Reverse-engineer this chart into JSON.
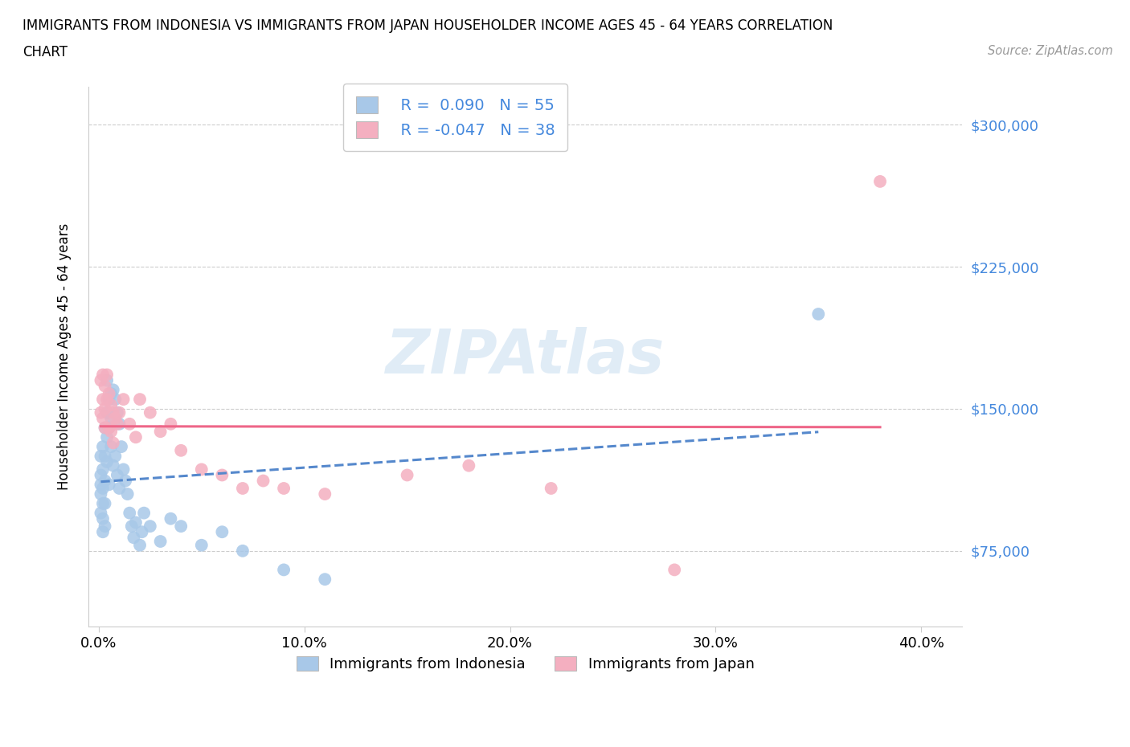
{
  "title_line1": "IMMIGRANTS FROM INDONESIA VS IMMIGRANTS FROM JAPAN HOUSEHOLDER INCOME AGES 45 - 64 YEARS CORRELATION",
  "title_line2": "CHART",
  "source": "Source: ZipAtlas.com",
  "ylabel": "Householder Income Ages 45 - 64 years",
  "xlabel_ticks": [
    "0.0%",
    "10.0%",
    "20.0%",
    "30.0%",
    "40.0%"
  ],
  "xlabel_tick_vals": [
    0.0,
    0.1,
    0.2,
    0.3,
    0.4
  ],
  "ytick_labels": [
    "$75,000",
    "$150,000",
    "$225,000",
    "$300,000"
  ],
  "ytick_vals": [
    75000,
    150000,
    225000,
    300000
  ],
  "xlim": [
    -0.005,
    0.42
  ],
  "ylim": [
    35000,
    320000
  ],
  "watermark": "ZIPAtlas",
  "R_indonesia": 0.09,
  "N_indonesia": 55,
  "R_japan": -0.047,
  "N_japan": 38,
  "indonesia_color": "#a8c8e8",
  "japan_color": "#f4afc0",
  "indonesia_line_color": "#5588cc",
  "japan_line_color": "#ee6688",
  "legend_label_indonesia": "Immigrants from Indonesia",
  "legend_label_japan": "Immigrants from Japan",
  "indonesia_x": [
    0.001,
    0.001,
    0.001,
    0.001,
    0.001,
    0.002,
    0.002,
    0.002,
    0.002,
    0.002,
    0.002,
    0.003,
    0.003,
    0.003,
    0.003,
    0.003,
    0.004,
    0.004,
    0.004,
    0.004,
    0.005,
    0.005,
    0.005,
    0.006,
    0.006,
    0.006,
    0.007,
    0.007,
    0.008,
    0.008,
    0.009,
    0.009,
    0.01,
    0.01,
    0.011,
    0.012,
    0.013,
    0.014,
    0.015,
    0.016,
    0.017,
    0.018,
    0.02,
    0.021,
    0.022,
    0.025,
    0.03,
    0.035,
    0.04,
    0.05,
    0.06,
    0.07,
    0.09,
    0.11,
    0.35
  ],
  "indonesia_y": [
    110000,
    125000,
    115000,
    105000,
    95000,
    130000,
    118000,
    108000,
    100000,
    92000,
    85000,
    140000,
    125000,
    112000,
    100000,
    88000,
    165000,
    148000,
    135000,
    122000,
    155000,
    140000,
    110000,
    158000,
    145000,
    130000,
    160000,
    120000,
    155000,
    125000,
    148000,
    115000,
    142000,
    108000,
    130000,
    118000,
    112000,
    105000,
    95000,
    88000,
    82000,
    90000,
    78000,
    85000,
    95000,
    88000,
    80000,
    92000,
    88000,
    78000,
    85000,
    75000,
    65000,
    60000,
    200000
  ],
  "japan_x": [
    0.001,
    0.001,
    0.002,
    0.002,
    0.002,
    0.003,
    0.003,
    0.003,
    0.004,
    0.004,
    0.005,
    0.005,
    0.006,
    0.006,
    0.007,
    0.007,
    0.008,
    0.009,
    0.01,
    0.012,
    0.015,
    0.018,
    0.02,
    0.025,
    0.03,
    0.035,
    0.04,
    0.05,
    0.06,
    0.07,
    0.08,
    0.09,
    0.11,
    0.15,
    0.18,
    0.22,
    0.28,
    0.38
  ],
  "japan_y": [
    165000,
    148000,
    168000,
    155000,
    145000,
    162000,
    150000,
    140000,
    168000,
    155000,
    158000,
    140000,
    152000,
    138000,
    148000,
    132000,
    145000,
    142000,
    148000,
    155000,
    142000,
    135000,
    155000,
    148000,
    138000,
    142000,
    128000,
    118000,
    115000,
    108000,
    112000,
    108000,
    105000,
    115000,
    120000,
    108000,
    65000,
    270000
  ]
}
